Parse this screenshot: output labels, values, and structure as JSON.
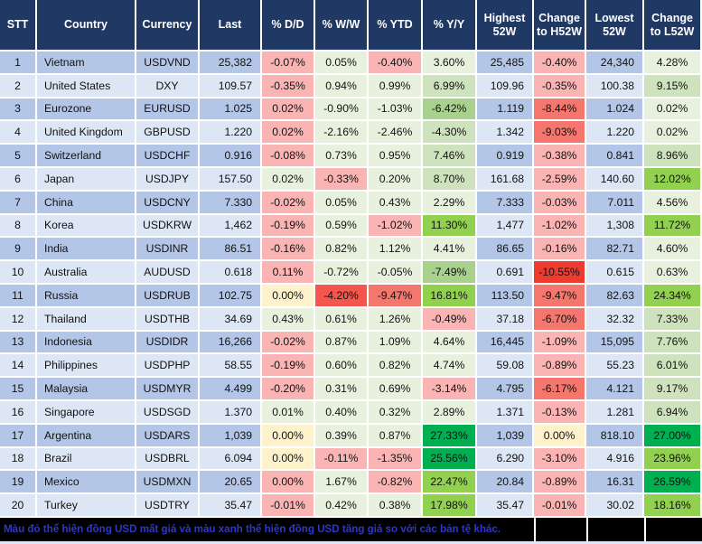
{
  "chart_data": {
    "type": "table",
    "title": "USD exchange rate performance table",
    "columns": [
      "STT",
      "Country",
      "Currency",
      "Last",
      "% D/D",
      "% W/W",
      "% YTD",
      "% Y/Y",
      "Highest 52W",
      "Change to H52W",
      "Lowest 52W",
      "Change to L52W"
    ],
    "rows": [
      {
        "stt": "1",
        "country": "Vietnam",
        "currency": "USDVND",
        "last": "25,382",
        "dd": {
          "v": "-0.07%",
          "c": "pink"
        },
        "ww": {
          "v": "0.05%",
          "c": "g1"
        },
        "ytd": {
          "v": "-0.40%",
          "c": "pink"
        },
        "yy": {
          "v": "3.60%",
          "c": "g1"
        },
        "h52": "25,485",
        "chg_h": {
          "v": "-0.40%",
          "c": "pink"
        },
        "l52": "24,340",
        "chg_l": {
          "v": "4.28%",
          "c": "g1"
        }
      },
      {
        "stt": "2",
        "country": "United States",
        "currency": "DXY",
        "last": "109.57",
        "dd": {
          "v": "-0.35%",
          "c": "pink"
        },
        "ww": {
          "v": "0.94%",
          "c": "g1"
        },
        "ytd": {
          "v": "0.99%",
          "c": "g1"
        },
        "yy": {
          "v": "6.99%",
          "c": "g2"
        },
        "h52": "109.96",
        "chg_h": {
          "v": "-0.35%",
          "c": "pink"
        },
        "l52": "100.38",
        "chg_l": {
          "v": "9.15%",
          "c": "g2"
        }
      },
      {
        "stt": "3",
        "country": "Eurozone",
        "currency": "EURUSD",
        "last": "1.025",
        "dd": {
          "v": "0.02%",
          "c": "pink"
        },
        "ww": {
          "v": "-0.90%",
          "c": "g1"
        },
        "ytd": {
          "v": "-1.03%",
          "c": "g1"
        },
        "yy": {
          "v": "-6.42%",
          "c": "g3m"
        },
        "h52": "1.119",
        "chg_h": {
          "v": "-8.44%",
          "c": "red3"
        },
        "l52": "1.024",
        "chg_l": {
          "v": "0.02%",
          "c": "g1"
        }
      },
      {
        "stt": "4",
        "country": "United Kingdom",
        "currency": "GBPUSD",
        "last": "1.220",
        "dd": {
          "v": "0.02%",
          "c": "pink"
        },
        "ww": {
          "v": "-2.16%",
          "c": "g1"
        },
        "ytd": {
          "v": "-2.46%",
          "c": "g1"
        },
        "yy": {
          "v": "-4.30%",
          "c": "g2"
        },
        "h52": "1.342",
        "chg_h": {
          "v": "-9.03%",
          "c": "red3"
        },
        "l52": "1.220",
        "chg_l": {
          "v": "0.02%",
          "c": "g1"
        }
      },
      {
        "stt": "5",
        "country": "Switzerland",
        "currency": "USDCHF",
        "last": "0.916",
        "dd": {
          "v": "-0.08%",
          "c": "pink"
        },
        "ww": {
          "v": "0.73%",
          "c": "g1"
        },
        "ytd": {
          "v": "0.95%",
          "c": "g1"
        },
        "yy": {
          "v": "7.46%",
          "c": "g2"
        },
        "h52": "0.919",
        "chg_h": {
          "v": "-0.38%",
          "c": "pink"
        },
        "l52": "0.841",
        "chg_l": {
          "v": "8.96%",
          "c": "g2"
        }
      },
      {
        "stt": "6",
        "country": "Japan",
        "currency": "USDJPY",
        "last": "157.50",
        "dd": {
          "v": "0.02%",
          "c": "g1"
        },
        "ww": {
          "v": "-0.33%",
          "c": "pink"
        },
        "ytd": {
          "v": "0.20%",
          "c": "g1"
        },
        "yy": {
          "v": "8.70%",
          "c": "g2"
        },
        "h52": "161.68",
        "chg_h": {
          "v": "-2.59%",
          "c": "pink"
        },
        "l52": "140.60",
        "chg_l": {
          "v": "12.02%",
          "c": "g3"
        }
      },
      {
        "stt": "7",
        "country": "China",
        "currency": "USDCNY",
        "last": "7.330",
        "dd": {
          "v": "-0.02%",
          "c": "pink"
        },
        "ww": {
          "v": "0.05%",
          "c": "g1"
        },
        "ytd": {
          "v": "0.43%",
          "c": "g1"
        },
        "yy": {
          "v": "2.29%",
          "c": "g1"
        },
        "h52": "7.333",
        "chg_h": {
          "v": "-0.03%",
          "c": "pink"
        },
        "l52": "7.011",
        "chg_l": {
          "v": "4.56%",
          "c": "g1"
        }
      },
      {
        "stt": "8",
        "country": "Korea",
        "currency": "USDKRW",
        "last": "1,462",
        "dd": {
          "v": "-0.19%",
          "c": "pink"
        },
        "ww": {
          "v": "0.59%",
          "c": "g1"
        },
        "ytd": {
          "v": "-1.02%",
          "c": "pink"
        },
        "yy": {
          "v": "11.30%",
          "c": "g3"
        },
        "h52": "1,477",
        "chg_h": {
          "v": "-1.02%",
          "c": "pink"
        },
        "l52": "1,308",
        "chg_l": {
          "v": "11.72%",
          "c": "g3"
        }
      },
      {
        "stt": "9",
        "country": "India",
        "currency": "USDINR",
        "last": "86.51",
        "dd": {
          "v": "-0.16%",
          "c": "pink"
        },
        "ww": {
          "v": "0.82%",
          "c": "g1"
        },
        "ytd": {
          "v": "1.12%",
          "c": "g1"
        },
        "yy": {
          "v": "4.41%",
          "c": "g1"
        },
        "h52": "86.65",
        "chg_h": {
          "v": "-0.16%",
          "c": "pink"
        },
        "l52": "82.71",
        "chg_l": {
          "v": "4.60%",
          "c": "g1"
        }
      },
      {
        "stt": "10",
        "country": "Australia",
        "currency": "AUDUSD",
        "last": "0.618",
        "dd": {
          "v": "0.11%",
          "c": "pink"
        },
        "ww": {
          "v": "-0.72%",
          "c": "g1"
        },
        "ytd": {
          "v": "-0.05%",
          "c": "g1"
        },
        "yy": {
          "v": "-7.49%",
          "c": "g3m"
        },
        "h52": "0.691",
        "chg_h": {
          "v": "-10.55%",
          "c": "red1"
        },
        "l52": "0.615",
        "chg_l": {
          "v": "0.63%",
          "c": "g1"
        }
      },
      {
        "stt": "11",
        "country": "Russia",
        "currency": "USDRUB",
        "last": "102.75",
        "dd": {
          "v": "0.00%",
          "c": "cream"
        },
        "ww": {
          "v": "-4.20%",
          "c": "red2"
        },
        "ytd": {
          "v": "-9.47%",
          "c": "red3"
        },
        "yy": {
          "v": "16.81%",
          "c": "g3"
        },
        "h52": "113.50",
        "chg_h": {
          "v": "-9.47%",
          "c": "red3"
        },
        "l52": "82.63",
        "chg_l": {
          "v": "24.34%",
          "c": "g3"
        }
      },
      {
        "stt": "12",
        "country": "Thailand",
        "currency": "USDTHB",
        "last": "34.69",
        "dd": {
          "v": "0.43%",
          "c": "g1"
        },
        "ww": {
          "v": "0.61%",
          "c": "g1"
        },
        "ytd": {
          "v": "1.26%",
          "c": "g1"
        },
        "yy": {
          "v": "-0.49%",
          "c": "pink"
        },
        "h52": "37.18",
        "chg_h": {
          "v": "-6.70%",
          "c": "red3"
        },
        "l52": "32.32",
        "chg_l": {
          "v": "7.33%",
          "c": "g2"
        }
      },
      {
        "stt": "13",
        "country": "Indonesia",
        "currency": "USDIDR",
        "last": "16,266",
        "dd": {
          "v": "-0.02%",
          "c": "pink"
        },
        "ww": {
          "v": "0.87%",
          "c": "g1"
        },
        "ytd": {
          "v": "1.09%",
          "c": "g1"
        },
        "yy": {
          "v": "4.64%",
          "c": "g1"
        },
        "h52": "16,445",
        "chg_h": {
          "v": "-1.09%",
          "c": "pink"
        },
        "l52": "15,095",
        "chg_l": {
          "v": "7.76%",
          "c": "g2"
        }
      },
      {
        "stt": "14",
        "country": "Philippines",
        "currency": "USDPHP",
        "last": "58.55",
        "dd": {
          "v": "-0.19%",
          "c": "pink"
        },
        "ww": {
          "v": "0.60%",
          "c": "g1"
        },
        "ytd": {
          "v": "0.82%",
          "c": "g1"
        },
        "yy": {
          "v": "4.74%",
          "c": "g1"
        },
        "h52": "59.08",
        "chg_h": {
          "v": "-0.89%",
          "c": "pink"
        },
        "l52": "55.23",
        "chg_l": {
          "v": "6.01%",
          "c": "g2"
        }
      },
      {
        "stt": "15",
        "country": "Malaysia",
        "currency": "USDMYR",
        "last": "4.499",
        "dd": {
          "v": "-0.20%",
          "c": "pink"
        },
        "ww": {
          "v": "0.31%",
          "c": "g1"
        },
        "ytd": {
          "v": "0.69%",
          "c": "g1"
        },
        "yy": {
          "v": "-3.14%",
          "c": "pink"
        },
        "h52": "4.795",
        "chg_h": {
          "v": "-6.17%",
          "c": "red3"
        },
        "l52": "4.121",
        "chg_l": {
          "v": "9.17%",
          "c": "g2"
        }
      },
      {
        "stt": "16",
        "country": "Singapore",
        "currency": "USDSGD",
        "last": "1.370",
        "dd": {
          "v": "0.01%",
          "c": "g1"
        },
        "ww": {
          "v": "0.40%",
          "c": "g1"
        },
        "ytd": {
          "v": "0.32%",
          "c": "g1"
        },
        "yy": {
          "v": "2.89%",
          "c": "g1"
        },
        "h52": "1.371",
        "chg_h": {
          "v": "-0.13%",
          "c": "pink"
        },
        "l52": "1.281",
        "chg_l": {
          "v": "6.94%",
          "c": "g2"
        }
      },
      {
        "stt": "17",
        "country": "Argentina",
        "currency": "USDARS",
        "last": "1,039",
        "dd": {
          "v": "0.00%",
          "c": "cream"
        },
        "ww": {
          "v": "0.39%",
          "c": "g1"
        },
        "ytd": {
          "v": "0.87%",
          "c": "g1"
        },
        "yy": {
          "v": "27.33%",
          "c": "g4"
        },
        "h52": "1,039",
        "chg_h": {
          "v": "0.00%",
          "c": "cream"
        },
        "l52": "818.10",
        "chg_l": {
          "v": "27.00%",
          "c": "g4"
        }
      },
      {
        "stt": "18",
        "country": "Brazil",
        "currency": "USDBRL",
        "last": "6.094",
        "dd": {
          "v": "0.00%",
          "c": "cream"
        },
        "ww": {
          "v": "-0.11%",
          "c": "pink"
        },
        "ytd": {
          "v": "-1.35%",
          "c": "pink"
        },
        "yy": {
          "v": "25.56%",
          "c": "g4"
        },
        "h52": "6.290",
        "chg_h": {
          "v": "-3.10%",
          "c": "pink"
        },
        "l52": "4.916",
        "chg_l": {
          "v": "23.96%",
          "c": "g3"
        }
      },
      {
        "stt": "19",
        "country": "Mexico",
        "currency": "USDMXN",
        "last": "20.65",
        "dd": {
          "v": "0.00%",
          "c": "pink"
        },
        "ww": {
          "v": "1.67%",
          "c": "g1"
        },
        "ytd": {
          "v": "-0.82%",
          "c": "pink"
        },
        "yy": {
          "v": "22.47%",
          "c": "g3"
        },
        "h52": "20.84",
        "chg_h": {
          "v": "-0.89%",
          "c": "pink"
        },
        "l52": "16.31",
        "chg_l": {
          "v": "26.59%",
          "c": "g4"
        }
      },
      {
        "stt": "20",
        "country": "Turkey",
        "currency": "USDTRY",
        "last": "35.47",
        "dd": {
          "v": "-0.01%",
          "c": "pink"
        },
        "ww": {
          "v": "0.42%",
          "c": "g1"
        },
        "ytd": {
          "v": "0.38%",
          "c": "g1"
        },
        "yy": {
          "v": "17.98%",
          "c": "g3"
        },
        "h52": "35.47",
        "chg_h": {
          "v": "-0.01%",
          "c": "pink"
        },
        "l52": "30.02",
        "chg_l": {
          "v": "18.16%",
          "c": "g3"
        }
      }
    ],
    "footnote": "Màu đỏ thể hiện đồng USD mất giá và màu xanh thể hiện đồng USD tăng giá so với các bản tệ khác.",
    "colors": {
      "header_bg": "#1F3864",
      "header_text": "#FFFFFF",
      "row_odd": "#B4C6E7",
      "row_even": "#DCE6F5",
      "pink": "#FBB4B4",
      "cream": "#FDF2CC",
      "g1": "#E7F1DE",
      "g2": "#CEE3BD",
      "g3m": "#A9D18E",
      "g3": "#92D050",
      "g4": "#00B050",
      "red1": "#EE3B30",
      "red2": "#F4564D",
      "red3": "#F4766D",
      "footer_bg": "#000000",
      "footer_text": "#2F36C8"
    },
    "layout": {
      "grid": "white 2px cell borders",
      "legend_position": "footer note"
    }
  }
}
